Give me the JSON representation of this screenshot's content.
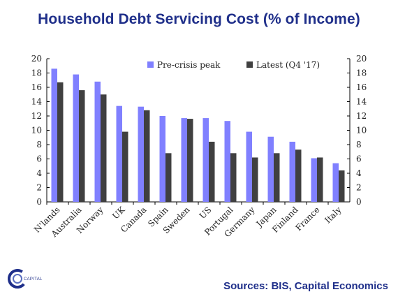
{
  "title": "Household Debt Servicing Cost (% of Income)",
  "source": "Sources: BIS, Capital Economics",
  "logo": {
    "text": "CAPITAL",
    "icon": "capital-economics-logo-icon"
  },
  "colors": {
    "peak": "#8080ff",
    "latest": "#404040",
    "title": "#1f2f8a"
  },
  "chart_data": {
    "type": "bar",
    "title": "Household Debt Servicing Cost (% of Income)",
    "categories": [
      "N'lands",
      "Australia",
      "Norway",
      "UK",
      "Canada",
      "Spain",
      "Sweden",
      "US",
      "Portugal",
      "Germany",
      "Japan",
      "Finland",
      "France",
      "Italy"
    ],
    "series": [
      {
        "name": "Pre-crisis peak",
        "values": [
          18.6,
          17.8,
          16.8,
          13.4,
          13.3,
          12.0,
          11.7,
          11.7,
          11.3,
          9.8,
          9.1,
          8.4,
          6.1,
          5.4
        ]
      },
      {
        "name": "Latest (Q4 '17)",
        "values": [
          16.7,
          15.6,
          15.0,
          9.8,
          12.8,
          6.8,
          11.6,
          8.4,
          6.8,
          6.2,
          6.8,
          7.3,
          6.2,
          4.4
        ]
      }
    ],
    "ylim": [
      0,
      20
    ],
    "yticks": [
      "0",
      "2",
      "4",
      "6",
      "8",
      "10",
      "12",
      "14",
      "16",
      "18",
      "20"
    ],
    "legend_position": "top",
    "grid": false
  }
}
